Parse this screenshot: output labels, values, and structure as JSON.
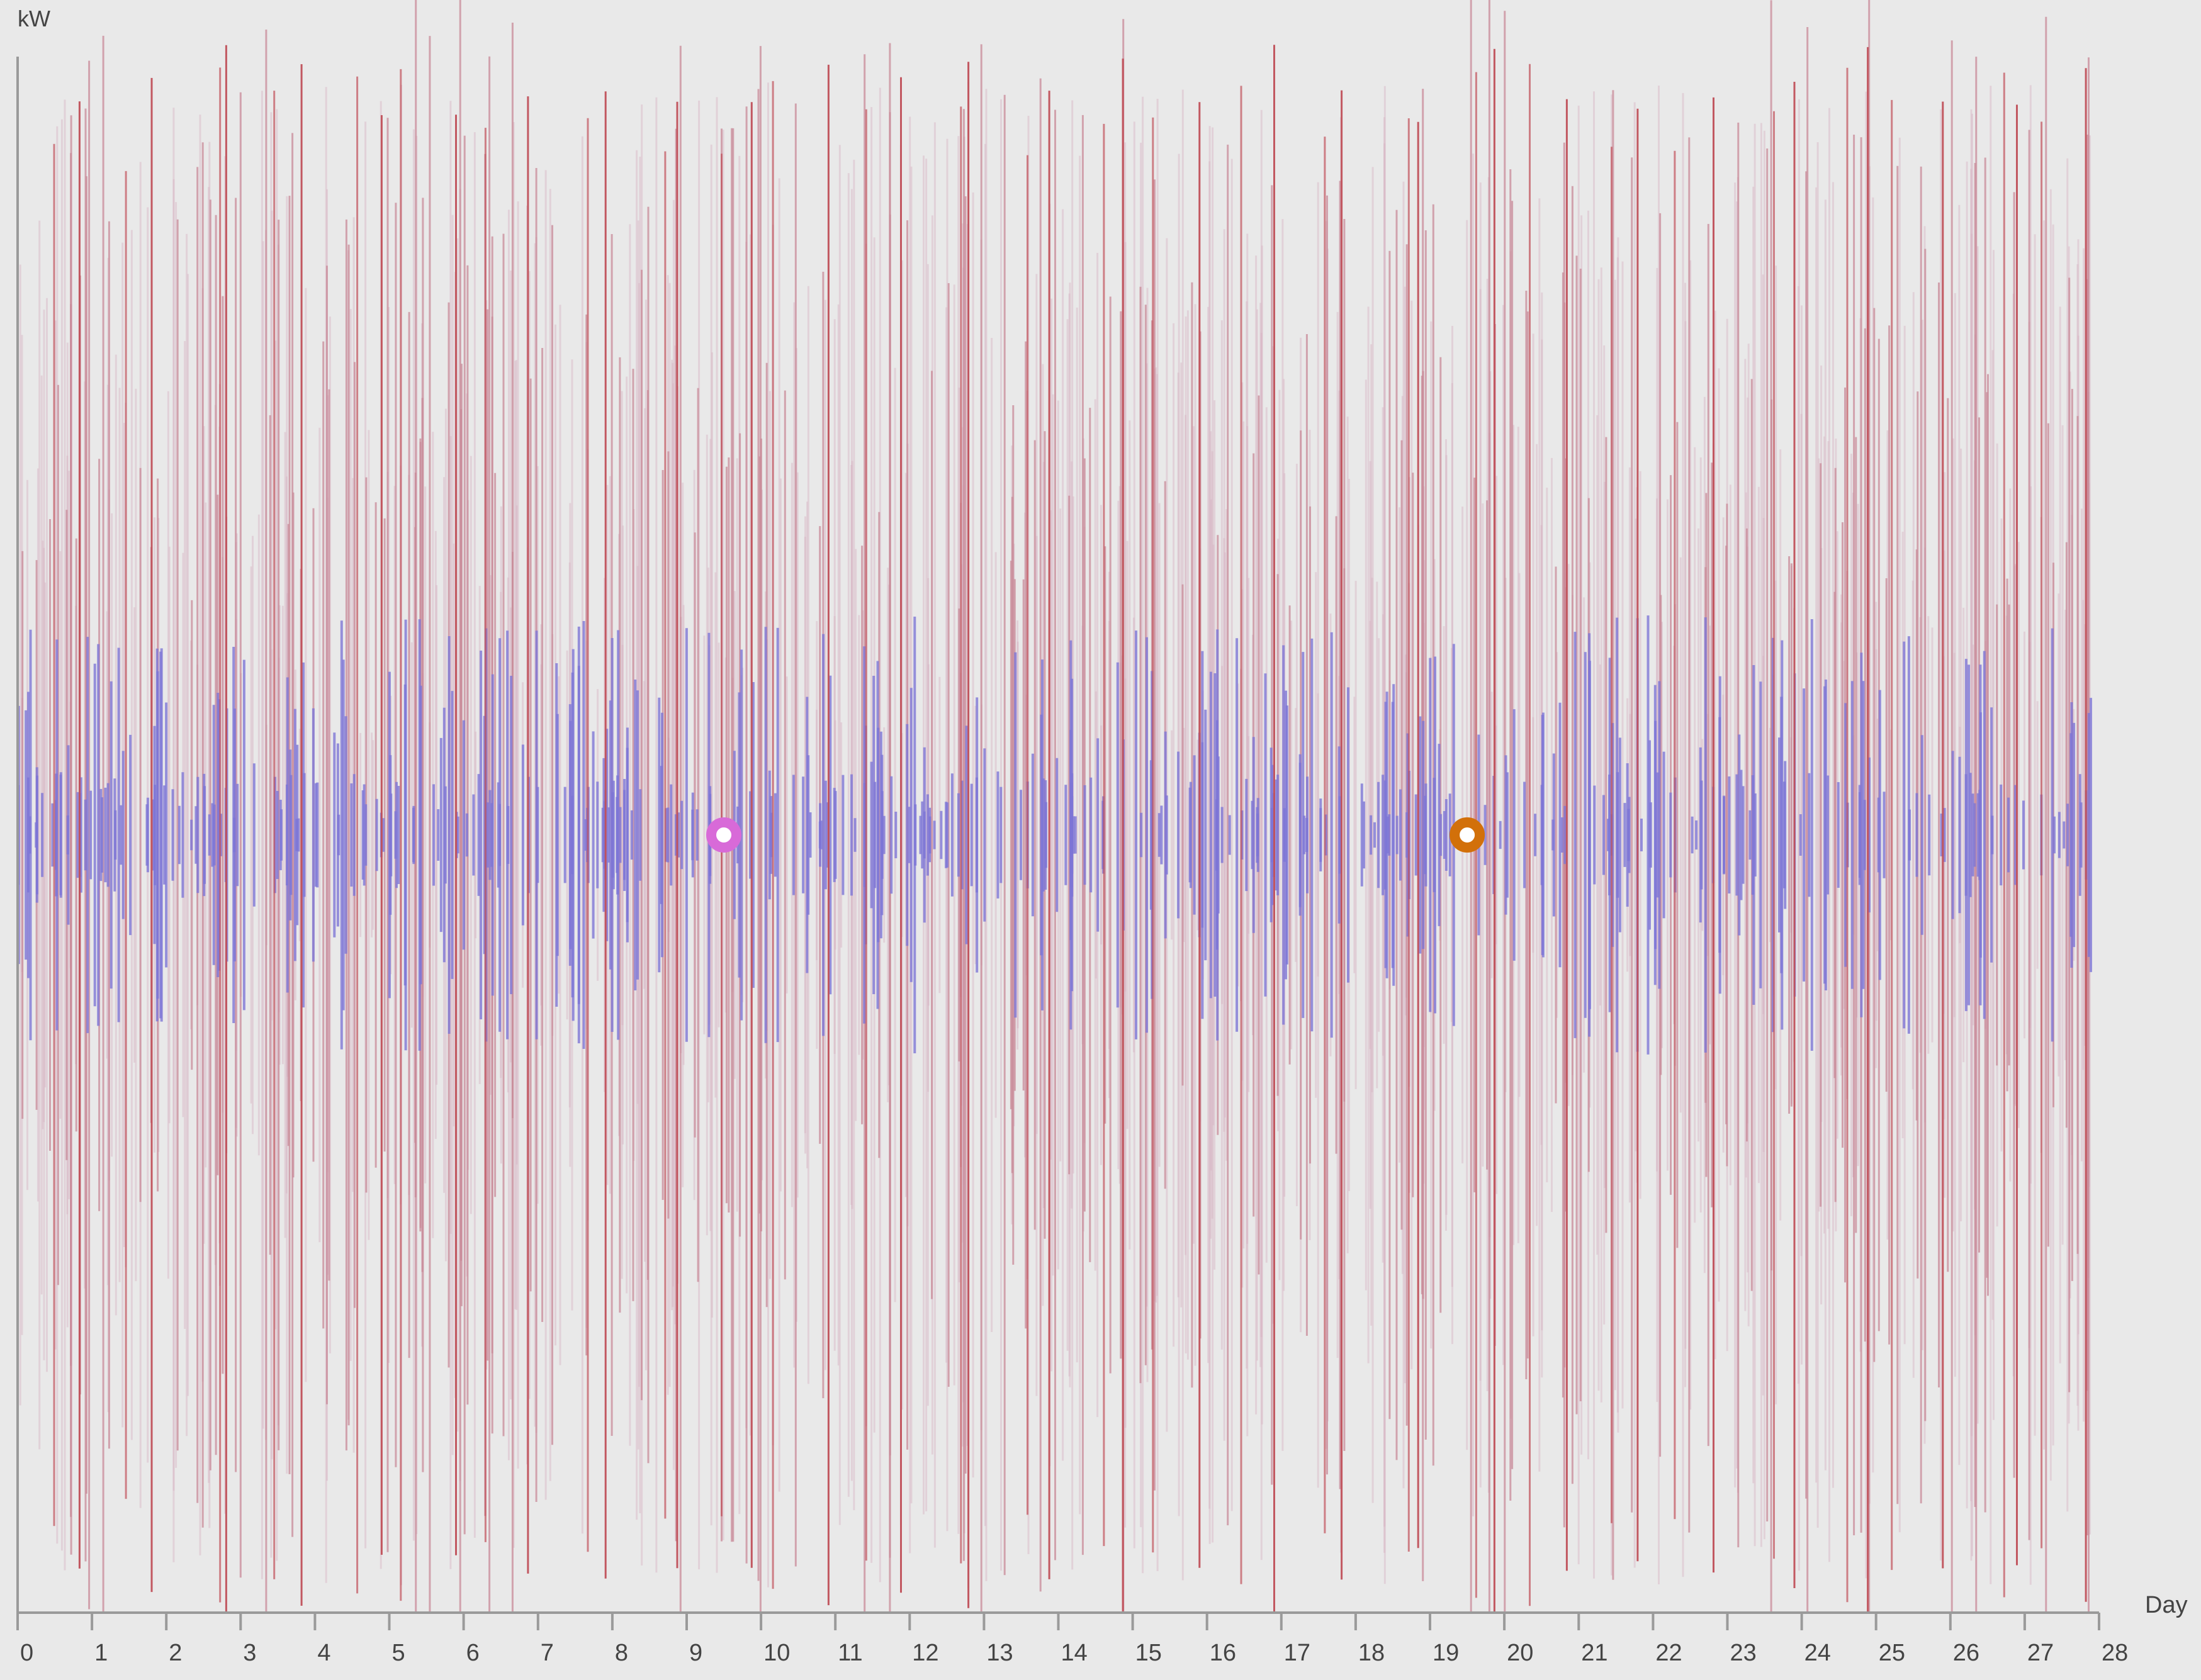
{
  "chart_data": {
    "type": "bar",
    "title": "",
    "xlabel": "Day",
    "ylabel": "kW",
    "xlim": [
      0,
      28
    ],
    "x_ticks": [
      "0",
      "1",
      "2",
      "3",
      "4",
      "5",
      "6",
      "7",
      "8",
      "9",
      "10",
      "11",
      "12",
      "13",
      "14",
      "15",
      "16",
      "17",
      "18",
      "19",
      "20",
      "21",
      "22",
      "23",
      "24",
      "25",
      "26",
      "27",
      "28"
    ],
    "grid": false,
    "legend": "none",
    "colors": {
      "axis": "#9a9a9a",
      "peak_series": "#c0505a",
      "high_series": "#c88a98",
      "mid_series": "#d6b4c4",
      "base_series": "#7c74d6",
      "marker_1": "#d86ad8",
      "marker_2": "#d2700a"
    },
    "markers": [
      {
        "x": 9.5,
        "y": 0,
        "color": "#d86ad8"
      },
      {
        "x": 19.5,
        "y": 0,
        "color": "#d2700a"
      }
    ]
  }
}
